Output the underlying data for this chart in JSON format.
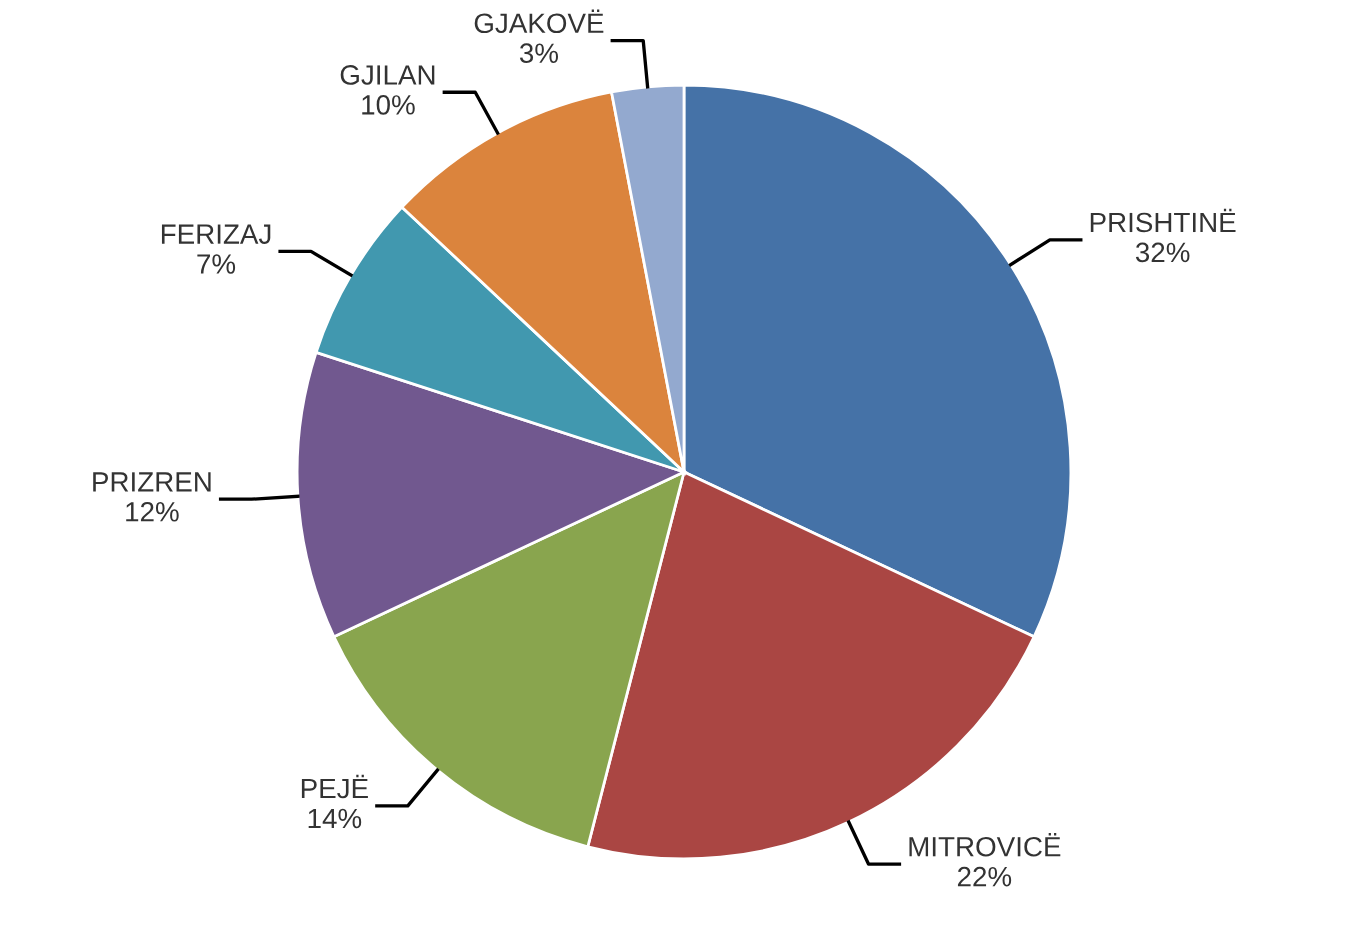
{
  "chart_data": {
    "type": "pie",
    "categories": [
      "PRISHTINË",
      "MITROVICË",
      "PEJË",
      "PRIZREN",
      "FERIZAJ",
      "GJILAN",
      "GJAKOVË"
    ],
    "values": [
      32,
      22,
      14,
      12,
      7,
      10,
      3
    ],
    "value_labels": [
      "32%",
      "22%",
      "14%",
      "12%",
      "7%",
      "10%",
      "3%"
    ],
    "colors": [
      "#4572a7",
      "#aa4643",
      "#89a54e",
      "#71588f",
      "#4198af",
      "#db843d",
      "#93a9cf"
    ]
  }
}
